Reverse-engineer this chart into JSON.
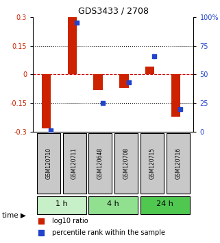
{
  "title": "GDS3433 / 2708",
  "samples": [
    "GSM120710",
    "GSM120711",
    "GSM120648",
    "GSM120708",
    "GSM120715",
    "GSM120716"
  ],
  "log10_ratio": [
    -0.28,
    0.3,
    -0.08,
    -0.07,
    0.04,
    -0.22
  ],
  "percentile_rank": [
    1,
    95,
    25,
    43,
    66,
    20
  ],
  "time_groups": [
    {
      "label": "1 h",
      "samples": [
        0,
        1
      ],
      "color": "#c8f0c8"
    },
    {
      "label": "4 h",
      "samples": [
        2,
        3
      ],
      "color": "#90e090"
    },
    {
      "label": "24 h",
      "samples": [
        4,
        5
      ],
      "color": "#50c850"
    }
  ],
  "ylim_left": [
    -0.3,
    0.3
  ],
  "ylim_right": [
    0,
    100
  ],
  "yticks_left": [
    -0.3,
    -0.15,
    0,
    0.15,
    0.3
  ],
  "ytick_labels_left": [
    "-0.3",
    "-0.15",
    "0",
    "0.15",
    "0.3"
  ],
  "yticks_right": [
    0,
    25,
    50,
    75,
    100
  ],
  "ytick_labels_right": [
    "0",
    "25",
    "50",
    "75",
    "100%"
  ],
  "bar_color_red": "#cc2200",
  "bar_color_blue": "#2244cc",
  "hline_color": "#cc0000",
  "dotted_line_color": "#000000",
  "sample_box_color": "#c8c8c8",
  "bar_width": 0.35
}
